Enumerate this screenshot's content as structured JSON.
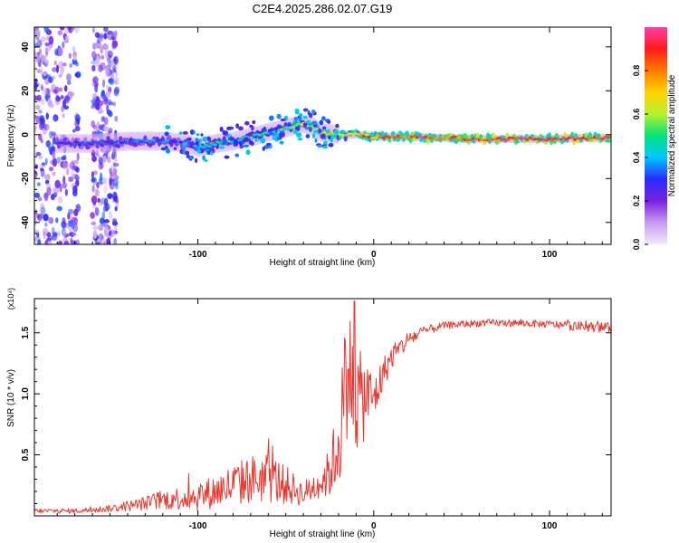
{
  "page_title": "C2E4.2025.286.02.07.G19",
  "colors": {
    "snr_line": "#e8372e",
    "frame": "#000000",
    "colormap": [
      "#f3e8fb",
      "#c89bf0",
      "#7a22e0",
      "#2a2bff",
      "#00c8ff",
      "#00e27a",
      "#b8f02c",
      "#ffd400",
      "#ff7a00",
      "#ff1a1a",
      "#ff3fa8"
    ]
  },
  "chart_data": [
    {
      "type": "heatmap",
      "title": "C2E4.2025.286.02.07.G19",
      "xlabel": "Height of straight line (km)",
      "ylabel": "Frequency (Hz)",
      "xlim": [
        -193,
        135
      ],
      "ylim": [
        -50,
        49
      ],
      "x_ticks": [
        -100,
        0,
        100
      ],
      "y_ticks": [
        -40,
        -20,
        0,
        20,
        40
      ],
      "grid": false,
      "colorbar": {
        "label": "Normalized spectral amplitude",
        "range": [
          0,
          1
        ],
        "ticks": [
          "0.0",
          "0.2",
          "0.4",
          "0.6",
          "0.8"
        ]
      },
      "ridge": {
        "x": [
          -180,
          -160,
          -140,
          -120,
          -105,
          -100,
          -90,
          -80,
          -70,
          -60,
          -50,
          -40,
          -35,
          -30,
          -20,
          -10,
          0,
          20,
          40,
          60,
          80,
          100,
          120,
          135
        ],
        "frequency": [
          -4,
          -4,
          -3,
          -3,
          -4,
          -6,
          -4,
          -3,
          -1,
          1,
          3,
          5,
          4,
          1,
          0,
          0,
          -1,
          -1,
          -1.5,
          -2,
          -2,
          -2,
          -1.5,
          -1.5
        ],
        "amplitude": [
          0.3,
          0.3,
          0.35,
          0.35,
          0.3,
          0.4,
          0.45,
          0.5,
          0.5,
          0.45,
          0.5,
          0.6,
          0.55,
          0.7,
          0.65,
          0.75,
          0.8,
          0.9,
          0.85,
          0.9,
          0.95,
          0.9,
          0.95,
          0.9
        ]
      },
      "scatter_region": {
        "x_range": [
          -193,
          -140
        ],
        "frequency_range": [
          -50,
          49
        ],
        "amplitude": [
          0.05,
          0.35
        ]
      }
    },
    {
      "type": "line",
      "xlabel": "Height of straight line (km)",
      "ylabel": "SNR (10 * v/v)",
      "y_multiplier": "(x10⁴)",
      "xlim": [
        -193,
        135
      ],
      "ylim": [
        0,
        1.78
      ],
      "x_ticks": [
        -100,
        0,
        100
      ],
      "y_ticks": [
        "0.5",
        "1.0",
        "1.5"
      ],
      "grid": false,
      "series": [
        {
          "x": [
            -193,
            -170,
            -150,
            -135,
            -120,
            -100,
            -90,
            -80,
            -70,
            -60,
            -50,
            -40,
            -30,
            -25,
            -20,
            -15,
            -12,
            -8,
            -5,
            0,
            5,
            10,
            20,
            30,
            40,
            60,
            80,
            100,
            110,
            120,
            135
          ],
          "y": [
            0.04,
            0.04,
            0.06,
            0.09,
            0.13,
            0.16,
            0.2,
            0.25,
            0.3,
            0.32,
            0.25,
            0.18,
            0.28,
            0.35,
            0.6,
            1.2,
            1.1,
            0.9,
            1.0,
            0.95,
            1.15,
            1.3,
            1.45,
            1.52,
            1.56,
            1.58,
            1.58,
            1.57,
            1.56,
            1.55,
            1.54
          ],
          "noise": [
            0.02,
            0.02,
            0.03,
            0.05,
            0.08,
            0.12,
            0.14,
            0.18,
            0.2,
            0.22,
            0.16,
            0.1,
            0.15,
            0.2,
            0.4,
            0.55,
            0.5,
            0.45,
            0.35,
            0.2,
            0.15,
            0.1,
            0.07,
            0.04,
            0.03,
            0.03,
            0.03,
            0.03,
            0.04,
            0.04,
            0.04
          ],
          "peak": {
            "x": -11,
            "y": 1.76
          }
        }
      ]
    }
  ]
}
